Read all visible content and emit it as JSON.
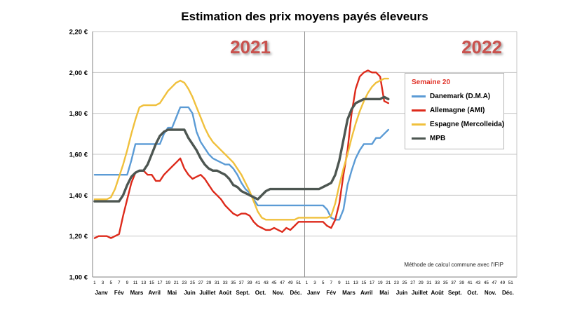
{
  "title": "Estimation des prix moyens payés éleveurs",
  "years": [
    {
      "label": "2021"
    },
    {
      "label": "2022"
    }
  ],
  "year_label_color": "#c9524e",
  "footnote": "Méthode de calcul commune avec l'IFIP",
  "legend": {
    "header": "Semaine 20",
    "header_color": "#e03127",
    "items": [
      {
        "label": "Danemark (D.M.A)",
        "color": "#5b9bd5"
      },
      {
        "label": "Allemagne (AMI)",
        "color": "#dd2a1b"
      },
      {
        "label": "Espagne (Mercolleida)",
        "color": "#f0c03c"
      },
      {
        "label": "MPB",
        "color": "#4d5651"
      }
    ]
  },
  "chart_data": {
    "type": "line",
    "title": "Estimation des prix moyens payés éleveurs",
    "xlabel": "",
    "ylabel": "",
    "ylim": [
      1.0,
      2.2
    ],
    "ytick_step": 0.2,
    "ytick_labels": [
      "1,00 €",
      "1,20 €",
      "1,40 €",
      "1,60 €",
      "1,80 €",
      "2,00 €",
      "2,20 €"
    ],
    "grid": true,
    "legend_position": "right",
    "x_axis": {
      "weeks_per_year": 52,
      "years": [
        "2021",
        "2022"
      ],
      "week_tick_labels": [
        1,
        3,
        5,
        7,
        9,
        11,
        13,
        15,
        17,
        19,
        21,
        23,
        25,
        27,
        29,
        31,
        33,
        35,
        37,
        39,
        41,
        43,
        45,
        47,
        49,
        51
      ],
      "months": [
        "Janv",
        "Fév",
        "Mars",
        "Avril",
        "Mai",
        "Juin",
        "Juillet",
        "Août",
        "Sept.",
        "Oct.",
        "Nov.",
        "Déc."
      ],
      "data_extent_note": "data from 2021 week 1 through 2022 week 21"
    },
    "series": [
      {
        "name": "Danemark (D.M.A)",
        "color": "#5b9bd5",
        "width": 2.4,
        "values": [
          1.5,
          1.5,
          1.5,
          1.5,
          1.5,
          1.5,
          1.5,
          1.5,
          1.5,
          1.57,
          1.65,
          1.65,
          1.65,
          1.65,
          1.65,
          1.65,
          1.65,
          1.7,
          1.73,
          1.73,
          1.78,
          1.83,
          1.83,
          1.83,
          1.8,
          1.71,
          1.66,
          1.63,
          1.6,
          1.58,
          1.57,
          1.56,
          1.55,
          1.55,
          1.53,
          1.5,
          1.46,
          1.43,
          1.41,
          1.38,
          1.35,
          1.35,
          1.35,
          1.35,
          1.35,
          1.35,
          1.35,
          1.35,
          1.35,
          1.35,
          1.35,
          1.35,
          1.35,
          1.35,
          1.35,
          1.35,
          1.35,
          1.33,
          1.29,
          1.28,
          1.28,
          1.33,
          1.45,
          1.52,
          1.58,
          1.62,
          1.65,
          1.65,
          1.65,
          1.68,
          1.68,
          1.7,
          1.72
        ]
      },
      {
        "name": "Allemagne (AMI)",
        "color": "#dd2a1b",
        "width": 2.4,
        "values": [
          1.19,
          1.2,
          1.2,
          1.2,
          1.19,
          1.2,
          1.21,
          1.3,
          1.38,
          1.46,
          1.51,
          1.52,
          1.52,
          1.5,
          1.5,
          1.47,
          1.47,
          1.5,
          1.52,
          1.54,
          1.56,
          1.58,
          1.53,
          1.5,
          1.48,
          1.49,
          1.5,
          1.48,
          1.45,
          1.42,
          1.4,
          1.38,
          1.35,
          1.33,
          1.31,
          1.3,
          1.31,
          1.31,
          1.3,
          1.27,
          1.25,
          1.24,
          1.23,
          1.23,
          1.24,
          1.23,
          1.22,
          1.24,
          1.23,
          1.25,
          1.27,
          1.27,
          1.27,
          1.27,
          1.27,
          1.27,
          1.27,
          1.25,
          1.24,
          1.28,
          1.36,
          1.5,
          1.62,
          1.8,
          1.92,
          1.98,
          2.0,
          2.01,
          2.0,
          2.0,
          1.98,
          1.86,
          1.85
        ]
      },
      {
        "name": "Espagne (Mercolleida)",
        "color": "#f0c03c",
        "width": 2.4,
        "values": [
          1.38,
          1.38,
          1.38,
          1.38,
          1.39,
          1.43,
          1.49,
          1.55,
          1.62,
          1.7,
          1.77,
          1.83,
          1.84,
          1.84,
          1.84,
          1.84,
          1.85,
          1.88,
          1.91,
          1.93,
          1.95,
          1.96,
          1.95,
          1.92,
          1.88,
          1.83,
          1.78,
          1.73,
          1.69,
          1.66,
          1.64,
          1.62,
          1.6,
          1.58,
          1.56,
          1.53,
          1.5,
          1.46,
          1.42,
          1.37,
          1.32,
          1.29,
          1.28,
          1.28,
          1.28,
          1.28,
          1.28,
          1.28,
          1.28,
          1.28,
          1.29,
          1.29,
          1.29,
          1.29,
          1.29,
          1.29,
          1.29,
          1.29,
          1.3,
          1.36,
          1.45,
          1.53,
          1.6,
          1.68,
          1.75,
          1.81,
          1.86,
          1.9,
          1.93,
          1.95,
          1.96,
          1.97,
          1.97
        ]
      },
      {
        "name": "MPB",
        "color": "#4d5651",
        "width": 3.4,
        "values": [
          1.37,
          1.37,
          1.37,
          1.37,
          1.37,
          1.37,
          1.37,
          1.4,
          1.45,
          1.49,
          1.51,
          1.52,
          1.52,
          1.55,
          1.6,
          1.65,
          1.69,
          1.71,
          1.72,
          1.72,
          1.72,
          1.72,
          1.72,
          1.68,
          1.65,
          1.62,
          1.58,
          1.55,
          1.53,
          1.52,
          1.52,
          1.51,
          1.5,
          1.48,
          1.45,
          1.44,
          1.42,
          1.41,
          1.4,
          1.39,
          1.38,
          1.4,
          1.42,
          1.43,
          1.43,
          1.43,
          1.43,
          1.43,
          1.43,
          1.43,
          1.43,
          1.43,
          1.43,
          1.43,
          1.43,
          1.43,
          1.44,
          1.45,
          1.46,
          1.5,
          1.57,
          1.67,
          1.77,
          1.82,
          1.85,
          1.86,
          1.87,
          1.87,
          1.87,
          1.87,
          1.87,
          1.88,
          1.87
        ]
      }
    ]
  }
}
